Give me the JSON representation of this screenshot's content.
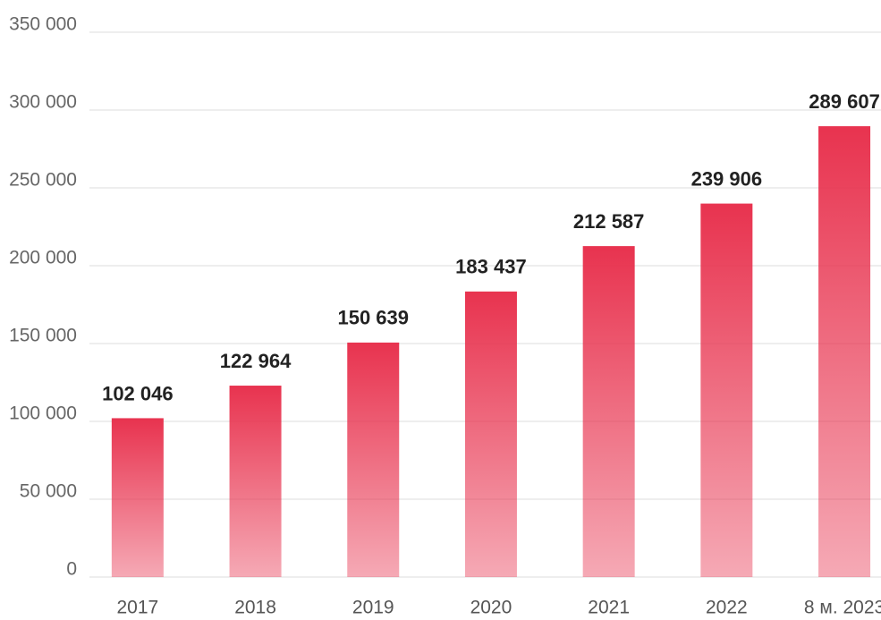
{
  "chart_data": {
    "type": "bar",
    "categories": [
      "2017",
      "2018",
      "2019",
      "2020",
      "2021",
      "2022",
      "8 м. 2023"
    ],
    "values": [
      102046,
      122964,
      150639,
      183437,
      212587,
      239906,
      289607
    ],
    "value_labels": [
      "102 046",
      "122 964",
      "150 639",
      "183 437",
      "212 587",
      "239 906",
      "289 607"
    ],
    "color": "#e8334f",
    "ylim": [
      0,
      350000
    ],
    "yticks": [
      0,
      {
        "value": 50000,
        "label": "50 000"
      },
      {
        "value": 100000,
        "label": "100 000"
      },
      {
        "value": 150000,
        "label": "150 000"
      },
      {
        "value": 200000,
        "label": "200 000"
      },
      {
        "value": 250000,
        "label": "250 000"
      },
      {
        "value": 300000,
        "label": "300 000"
      },
      {
        "value": 350000,
        "label": "350 000"
      }
    ],
    "grid": true
  }
}
